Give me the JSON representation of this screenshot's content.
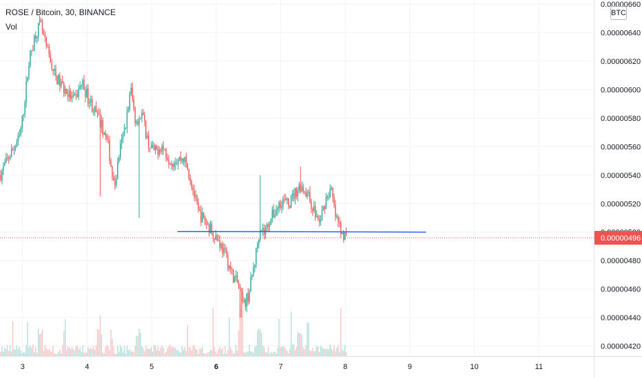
{
  "header": {
    "symbol_title": "ROSE / Bitcoin, 30, BINANCE",
    "volume_label": "Vol",
    "currency_badge": "BTC"
  },
  "colors": {
    "up": "#26a69a",
    "down": "#ef5350",
    "volume_up": "#b2dfdb",
    "volume_down": "#f7c5c5",
    "grid": "#f0f3fa",
    "trendline": "#2962ff",
    "price_line": "#ef5350",
    "axis_text": "#131722"
  },
  "chart_data": {
    "type": "candlestick",
    "title": "ROSE / Bitcoin, 30, BINANCE",
    "y_unit": "BTC",
    "ylim": [
      4.13e-06,
      6.63e-06
    ],
    "xlim": [
      2.65,
      11.85
    ],
    "grid": true,
    "y_ticks": [
      "0.00000660",
      "0.00000640",
      "0.00000620",
      "0.00000600",
      "0.00000580",
      "0.00000560",
      "0.00000540",
      "0.00000520",
      "0.00000500",
      "0.00000480",
      "0.00000460",
      "0.00000440",
      "0.00000420"
    ],
    "x_ticks": [
      {
        "value": 3,
        "label": "3",
        "bold": false
      },
      {
        "value": 4,
        "label": "4",
        "bold": false
      },
      {
        "value": 5,
        "label": "5",
        "bold": false
      },
      {
        "value": 6,
        "label": "6",
        "bold": true
      },
      {
        "value": 7,
        "label": "7",
        "bold": false
      },
      {
        "value": 8,
        "label": "8",
        "bold": false
      },
      {
        "value": 9,
        "label": "9",
        "bold": false
      },
      {
        "value": 10,
        "label": "10",
        "bold": false
      },
      {
        "value": 11,
        "label": "11",
        "bold": false
      }
    ],
    "last_price": 4.96e-06,
    "last_price_label": "0.00000496",
    "trendline": {
      "x1": 5.4,
      "y1": 5.005e-06,
      "x2": 9.25,
      "y2": 5e-06
    },
    "price_path": [
      [
        2.65,
        5.4e-06
      ],
      [
        2.8,
        5.54e-06
      ],
      [
        2.95,
        5.66e-06
      ],
      [
        3.0,
        5.8e-06
      ],
      [
        3.1,
        6.2e-06
      ],
      [
        3.2,
        6.4e-06
      ],
      [
        3.28,
        6.46e-06
      ],
      [
        3.35,
        6.32e-06
      ],
      [
        3.5,
        6.1e-06
      ],
      [
        3.65,
        6e-06
      ],
      [
        3.8,
        5.92e-06
      ],
      [
        3.92,
        6.05e-06
      ],
      [
        4.0,
        5.96e-06
      ],
      [
        4.15,
        5.82e-06
      ],
      [
        4.25,
        5.72e-06
      ],
      [
        4.33,
        5.6e-06
      ],
      [
        4.42,
        5.3e-06
      ],
      [
        4.5,
        5.56e-06
      ],
      [
        4.58,
        5.72e-06
      ],
      [
        4.68,
        6e-06
      ],
      [
        4.75,
        5.78e-06
      ],
      [
        4.85,
        5.83e-06
      ],
      [
        4.95,
        5.62e-06
      ],
      [
        5.05,
        5.56e-06
      ],
      [
        5.15,
        5.61e-06
      ],
      [
        5.3,
        5.5e-06
      ],
      [
        5.5,
        5.52e-06
      ],
      [
        5.6,
        5.38e-06
      ],
      [
        5.72,
        5.14e-06
      ],
      [
        5.85,
        5.06e-06
      ],
      [
        5.95,
        5e-06
      ],
      [
        6.05,
        4.93e-06
      ],
      [
        6.15,
        4.83e-06
      ],
      [
        6.25,
        4.7e-06
      ],
      [
        6.35,
        4.62e-06
      ],
      [
        6.42,
        4.48e-06
      ],
      [
        6.5,
        4.56e-06
      ],
      [
        6.6,
        4.8e-06
      ],
      [
        6.68,
        5.05e-06
      ],
      [
        6.75,
        4.99e-06
      ],
      [
        6.82,
        5.08e-06
      ],
      [
        6.92,
        5.15e-06
      ],
      [
        7.02,
        5.23e-06
      ],
      [
        7.12,
        5.19e-06
      ],
      [
        7.2,
        5.26e-06
      ],
      [
        7.3,
        5.33e-06
      ],
      [
        7.4,
        5.28e-06
      ],
      [
        7.5,
        5.17e-06
      ],
      [
        7.6,
        5.06e-06
      ],
      [
        7.7,
        5.24e-06
      ],
      [
        7.78,
        5.3e-06
      ],
      [
        7.85,
        5.1e-06
      ],
      [
        7.95,
        5e-06
      ],
      [
        8.03,
        4.96e-06
      ]
    ],
    "spikes": [
      {
        "x": 4.2,
        "value": 5.25e-06
      },
      {
        "x": 4.8,
        "value": 5.1e-06
      },
      {
        "x": 6.38,
        "value": 4.4e-06
      },
      {
        "x": 6.68,
        "value": 5.4e-06
      },
      {
        "x": 7.3,
        "value": 5.46e-06
      },
      {
        "x": 3.28,
        "value": 6.48e-06
      }
    ]
  }
}
